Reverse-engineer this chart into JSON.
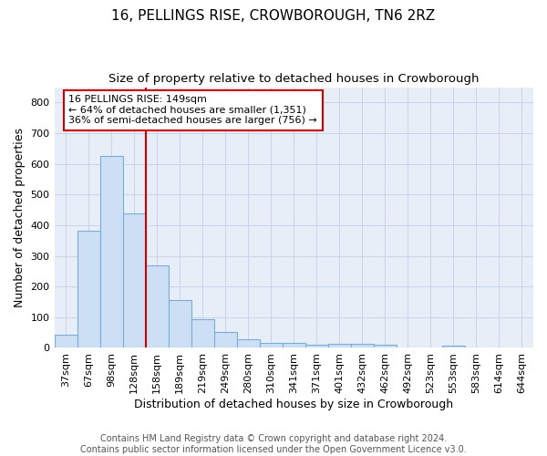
{
  "title": "16, PELLINGS RISE, CROWBOROUGH, TN6 2RZ",
  "subtitle": "Size of property relative to detached houses in Crowborough",
  "xlabel": "Distribution of detached houses by size in Crowborough",
  "ylabel": "Number of detached properties",
  "categories": [
    "37sqm",
    "67sqm",
    "98sqm",
    "128sqm",
    "158sqm",
    "189sqm",
    "219sqm",
    "249sqm",
    "280sqm",
    "310sqm",
    "341sqm",
    "371sqm",
    "401sqm",
    "432sqm",
    "462sqm",
    "492sqm",
    "523sqm",
    "553sqm",
    "583sqm",
    "614sqm",
    "644sqm"
  ],
  "values": [
    43,
    382,
    625,
    438,
    268,
    155,
    95,
    52,
    28,
    16,
    16,
    11,
    12,
    12,
    10,
    0,
    0,
    8,
    0,
    0,
    0
  ],
  "bar_color": "#ccdff5",
  "bar_edge_color": "#7aadd4",
  "vline_color": "#cc0000",
  "annotation_text": "16 PELLINGS RISE: 149sqm\n← 64% of detached houses are smaller (1,351)\n36% of semi-detached houses are larger (756) →",
  "annotation_box_color": "#ffffff",
  "annotation_box_edge_color": "#cc0000",
  "ylim": [
    0,
    850
  ],
  "yticks": [
    0,
    100,
    200,
    300,
    400,
    500,
    600,
    700,
    800
  ],
  "grid_color": "#c8d4e8",
  "bg_color": "#e8eef8",
  "footer": "Contains HM Land Registry data © Crown copyright and database right 2024.\nContains public sector information licensed under the Open Government Licence v3.0.",
  "title_fontsize": 11,
  "subtitle_fontsize": 9.5,
  "label_fontsize": 9,
  "tick_fontsize": 8,
  "footer_fontsize": 7
}
